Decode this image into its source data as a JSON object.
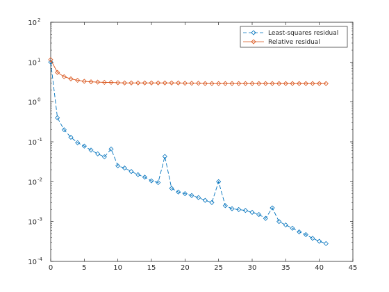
{
  "chart_data": {
    "type": "line",
    "title": "",
    "xlabel": "",
    "ylabel": "",
    "xlim": [
      0,
      45
    ],
    "ylim": [
      0.0001,
      100
    ],
    "yscale": "log",
    "grid": false,
    "legend_position": "top-right",
    "x_ticks": [
      "0",
      "5",
      "10",
      "15",
      "20",
      "25",
      "30",
      "35",
      "40",
      "45"
    ],
    "y_ticks": [
      {
        "base": "10",
        "exp": "-4"
      },
      {
        "base": "10",
        "exp": "-3"
      },
      {
        "base": "10",
        "exp": "-2"
      },
      {
        "base": "10",
        "exp": "-1"
      },
      {
        "base": "10",
        "exp": "0"
      },
      {
        "base": "10",
        "exp": "1"
      },
      {
        "base": "10",
        "exp": "2"
      }
    ],
    "x": [
      0,
      1,
      2,
      3,
      4,
      5,
      6,
      7,
      8,
      9,
      10,
      11,
      12,
      13,
      14,
      15,
      16,
      17,
      18,
      19,
      20,
      21,
      22,
      23,
      24,
      25,
      26,
      27,
      28,
      29,
      30,
      31,
      32,
      33,
      34,
      35,
      36,
      37,
      38,
      39,
      40,
      41
    ],
    "series": [
      {
        "name": "Least-squares residual",
        "color": "#0072BD",
        "line_style": "dashed",
        "marker": "diamond",
        "values": [
          10,
          0.4,
          0.2,
          0.13,
          0.095,
          0.078,
          0.062,
          0.05,
          0.042,
          0.066,
          0.025,
          0.022,
          0.018,
          0.015,
          0.013,
          0.0105,
          0.0095,
          0.043,
          0.0068,
          0.0055,
          0.005,
          0.0045,
          0.004,
          0.0034,
          0.003,
          0.01,
          0.0025,
          0.0021,
          0.002,
          0.0019,
          0.0017,
          0.0015,
          0.0012,
          0.0022,
          0.001,
          0.00082,
          0.00068,
          0.00055,
          0.00047,
          0.00038,
          0.00032,
          0.00028
        ]
      },
      {
        "name": "Relative residual",
        "color": "#D95319",
        "line_style": "solid",
        "marker": "diamond",
        "values": [
          11.5,
          5.5,
          4.3,
          3.8,
          3.5,
          3.3,
          3.2,
          3.15,
          3.1,
          3.1,
          3.05,
          3.0,
          3.0,
          3.0,
          3.0,
          3.0,
          3.0,
          3.0,
          3.0,
          3.0,
          2.95,
          2.95,
          2.95,
          2.9,
          2.9,
          2.9,
          2.9,
          2.9,
          2.9,
          2.9,
          2.9,
          2.9,
          2.9,
          2.9,
          2.9,
          2.9,
          2.9,
          2.9,
          2.9,
          2.9,
          2.9,
          2.9
        ]
      }
    ]
  }
}
